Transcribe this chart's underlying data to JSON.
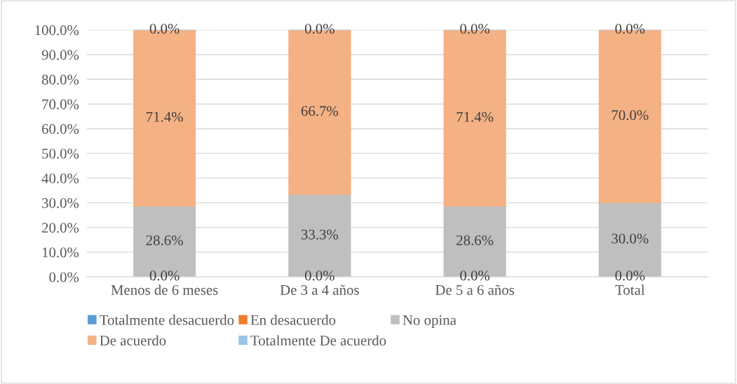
{
  "chart_data": {
    "type": "bar",
    "stacked": true,
    "categories": [
      "Menos de 6 meses",
      "De 3 a 4 años",
      "De 5 a 6 años",
      "Total"
    ],
    "series": [
      {
        "name": "Totalmente desacuerdo",
        "color": "#5b9bd5",
        "values": [
          0,
          0,
          0,
          0
        ],
        "value_labels": [
          "0.0%",
          "0.0%",
          "0.0%",
          "0.0%"
        ]
      },
      {
        "name": "En desacuerdo",
        "color": "#ed7d31",
        "values": [
          0,
          0,
          0,
          0
        ]
      },
      {
        "name": "No opina",
        "color": "#bfbfbf",
        "values": [
          28.6,
          33.3,
          28.6,
          30.0
        ],
        "value_labels": [
          "28.6%",
          "33.3%",
          "28.6%",
          "30.0%"
        ]
      },
      {
        "name": "De acuerdo",
        "color": "#f4b183",
        "values": [
          71.4,
          66.7,
          71.4,
          70.0
        ],
        "value_labels": [
          "71.4%",
          "66.7%",
          "71.4%",
          "70.0%"
        ]
      },
      {
        "name": "Totalmente De acuerdo",
        "color": "#9dc3e6",
        "values": [
          0,
          0,
          0,
          0
        ],
        "value_labels": [
          "0.0%",
          "0.0%",
          "0.0%",
          "0.0%"
        ]
      }
    ],
    "ylim": [
      0,
      100
    ],
    "yticks": [
      {
        "value": 0,
        "label": "0.0%"
      },
      {
        "value": 10,
        "label": "10.0%"
      },
      {
        "value": 20,
        "label": "20.0%"
      },
      {
        "value": 30,
        "label": "30.0%"
      },
      {
        "value": 40,
        "label": "40.0%"
      },
      {
        "value": 50,
        "label": "50.0%"
      },
      {
        "value": 60,
        "label": "60.0%"
      },
      {
        "value": 70,
        "label": "70.0%"
      },
      {
        "value": 80,
        "label": "80.0%"
      },
      {
        "value": 90,
        "label": "90.0%"
      },
      {
        "value": 100,
        "label": "100.0%"
      }
    ],
    "grid": "y",
    "legend": "bottom"
  }
}
